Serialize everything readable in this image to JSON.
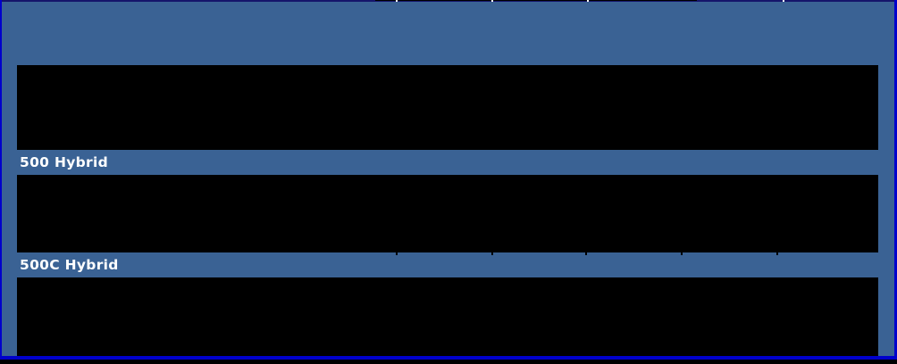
{
  "page": {
    "panel_color": "#3a6294",
    "outer_border_color": "#0000cc",
    "top_border_color": "#15156b",
    "content_block_color": "#000000",
    "below_strip_color": "#000000",
    "text_color": "#ffffff"
  },
  "sections": [
    {
      "label": "500 Hybrid"
    },
    {
      "label": "500C Hybrid"
    }
  ]
}
